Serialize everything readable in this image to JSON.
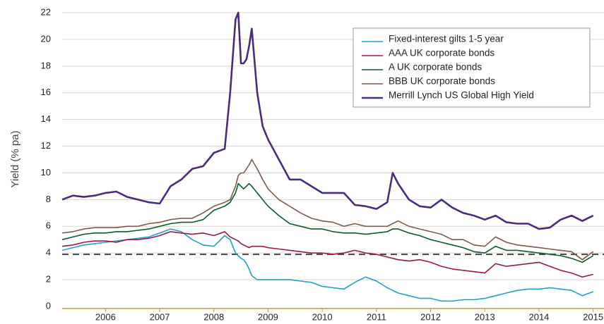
{
  "chart_data": {
    "type": "line",
    "y_label": "Yield (% pa)",
    "x": [
      2005.2,
      2005.4,
      2005.6,
      2005.8,
      2006.0,
      2006.2,
      2006.4,
      2006.6,
      2006.8,
      2007.0,
      2007.2,
      2007.4,
      2007.6,
      2007.8,
      2008.0,
      2008.2,
      2008.3,
      2008.4,
      2008.45,
      2008.5,
      2008.55,
      2008.6,
      2008.65,
      2008.7,
      2008.8,
      2008.9,
      2009.0,
      2009.2,
      2009.4,
      2009.6,
      2009.8,
      2010.0,
      2010.2,
      2010.4,
      2010.6,
      2010.8,
      2011.0,
      2011.2,
      2011.3,
      2011.4,
      2011.6,
      2011.8,
      2012.0,
      2012.2,
      2012.4,
      2012.6,
      2012.8,
      2013.0,
      2013.2,
      2013.4,
      2013.6,
      2013.8,
      2014.0,
      2014.2,
      2014.4,
      2014.6,
      2014.8,
      2015.0
    ],
    "series": [
      {
        "name": "Fixed-interest gilts 1-5 year",
        "color": "#1ba3c6",
        "width": 1.6,
        "values": [
          4.2,
          4.4,
          4.6,
          4.7,
          4.8,
          4.9,
          5.0,
          5.1,
          5.2,
          5.5,
          5.8,
          5.6,
          5.0,
          4.6,
          4.5,
          5.3,
          5.0,
          4.0,
          3.8,
          3.6,
          3.5,
          3.2,
          2.8,
          2.3,
          2.0,
          2.0,
          2.0,
          2.0,
          2.0,
          1.9,
          1.8,
          1.5,
          1.4,
          1.3,
          1.8,
          2.2,
          1.9,
          1.4,
          1.2,
          1.0,
          0.8,
          0.6,
          0.6,
          0.4,
          0.4,
          0.5,
          0.5,
          0.6,
          0.8,
          1.0,
          1.2,
          1.3,
          1.3,
          1.4,
          1.3,
          1.2,
          0.8,
          1.1
        ]
      },
      {
        "name": "AAA UK corporate bonds",
        "color": "#9b1848",
        "width": 1.6,
        "values": [
          4.5,
          4.6,
          4.8,
          4.9,
          4.9,
          4.8,
          5.0,
          5.0,
          5.1,
          5.3,
          5.6,
          5.5,
          5.4,
          5.5,
          5.3,
          5.6,
          5.2,
          5.0,
          4.9,
          4.7,
          4.6,
          4.5,
          4.4,
          4.5,
          4.5,
          4.5,
          4.4,
          4.3,
          4.2,
          4.1,
          4.0,
          4.0,
          3.9,
          4.0,
          4.2,
          4.0,
          3.9,
          3.7,
          3.6,
          3.5,
          3.4,
          3.5,
          3.3,
          3.0,
          2.8,
          2.7,
          2.6,
          2.5,
          3.2,
          3.0,
          3.1,
          3.2,
          3.3,
          3.0,
          2.7,
          2.5,
          2.2,
          2.4
        ]
      },
      {
        "name": "A UK corporate bonds",
        "color": "#0b5a2e",
        "width": 1.6,
        "values": [
          5.0,
          5.2,
          5.4,
          5.5,
          5.5,
          5.6,
          5.6,
          5.7,
          5.8,
          6.0,
          6.2,
          6.3,
          6.3,
          6.5,
          7.2,
          7.5,
          7.8,
          8.5,
          9.2,
          9.0,
          8.8,
          9.0,
          9.2,
          9.0,
          8.5,
          8.0,
          7.5,
          6.8,
          6.2,
          6.0,
          5.8,
          5.8,
          5.6,
          5.5,
          5.5,
          5.4,
          5.5,
          5.6,
          5.8,
          5.8,
          5.5,
          5.3,
          5.0,
          4.8,
          4.6,
          4.4,
          4.1,
          4.0,
          4.5,
          4.2,
          4.2,
          4.1,
          4.0,
          3.9,
          3.8,
          3.6,
          3.3,
          3.8
        ]
      },
      {
        "name": "BBB UK corporate bonds",
        "color": "#7d5b4a",
        "width": 1.6,
        "values": [
          5.5,
          5.6,
          5.8,
          5.9,
          5.9,
          5.9,
          6.0,
          6.0,
          6.2,
          6.3,
          6.5,
          6.6,
          6.6,
          7.0,
          7.5,
          7.8,
          8.0,
          9.0,
          9.8,
          10.0,
          10.0,
          10.3,
          10.6,
          11.0,
          10.3,
          9.5,
          8.8,
          8.0,
          7.5,
          7.0,
          6.6,
          6.4,
          6.3,
          6.0,
          6.2,
          6.0,
          6.0,
          6.0,
          6.2,
          6.4,
          6.0,
          5.8,
          5.6,
          5.4,
          5.0,
          5.0,
          4.6,
          4.5,
          5.2,
          4.8,
          4.6,
          4.5,
          4.4,
          4.3,
          4.2,
          4.1,
          3.5,
          4.1
        ]
      },
      {
        "name": "Merrill Lynch US Global High Yield",
        "color": "#4b2b7f",
        "width": 2.6,
        "values": [
          8.0,
          8.3,
          8.2,
          8.3,
          8.5,
          8.6,
          8.2,
          8.0,
          7.8,
          7.7,
          9.0,
          9.5,
          10.3,
          10.5,
          11.5,
          11.8,
          16,
          21.5,
          22,
          18.2,
          18.2,
          18.5,
          19.5,
          20.8,
          16,
          13.5,
          12.5,
          11,
          9.5,
          9.5,
          9.0,
          8.5,
          8.5,
          8.5,
          7.6,
          7.5,
          7.3,
          7.8,
          10.0,
          9.2,
          8.0,
          7.5,
          7.4,
          8.0,
          7.4,
          7.0,
          6.8,
          6.5,
          6.8,
          6.3,
          6.2,
          6.2,
          5.8,
          5.9,
          6.5,
          6.8,
          6.4,
          6.8
        ]
      }
    ],
    "reference_line": 3.9,
    "xlim": [
      2005.2,
      2015.2
    ],
    "xticks": [
      2006,
      2007,
      2008,
      2009,
      2010,
      2011,
      2012,
      2013,
      2014,
      2015
    ],
    "ylim": [
      0,
      22
    ],
    "yticks": [
      0,
      2,
      4,
      6,
      8,
      10,
      12,
      14,
      16,
      18,
      20,
      22
    ],
    "grid": true,
    "legend": "top-right"
  }
}
